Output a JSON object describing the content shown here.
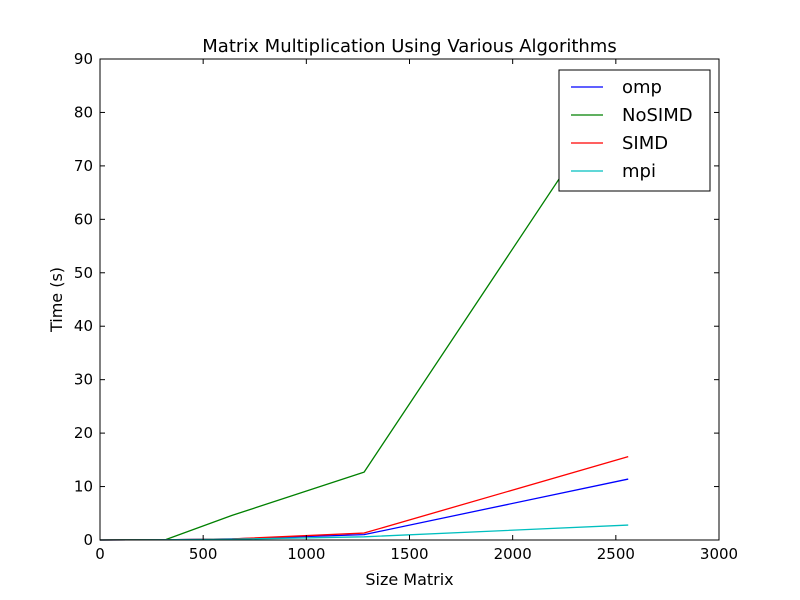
{
  "chart_data": {
    "type": "line",
    "title": "Matrix Multiplication Using Various Algorithms",
    "xlabel": "Size Matrix",
    "ylabel": "Time (s)",
    "xlim": [
      0,
      3000
    ],
    "ylim": [
      0,
      90
    ],
    "xticks": [
      0,
      500,
      1000,
      1500,
      2000,
      2500,
      3000
    ],
    "yticks": [
      0,
      10,
      20,
      30,
      40,
      50,
      60,
      70,
      80,
      90
    ],
    "grid": false,
    "legend_position": "top-right",
    "series": [
      {
        "name": "omp",
        "color": "#0000ff",
        "x": [
          0,
          320,
          640,
          1280,
          2560
        ],
        "y": [
          0,
          0.05,
          0.2,
          1.0,
          11.4
        ]
      },
      {
        "name": "NoSIMD",
        "color": "#008000",
        "x": [
          0,
          320,
          640,
          1280,
          2560
        ],
        "y": [
          0,
          0.1,
          4.6,
          12.7,
          87.0
        ]
      },
      {
        "name": "SIMD",
        "color": "#ff0000",
        "x": [
          0,
          320,
          640,
          1280,
          2560
        ],
        "y": [
          0,
          0.05,
          0.2,
          1.3,
          15.6
        ]
      },
      {
        "name": "mpi",
        "color": "#00bfbf",
        "x": [
          0,
          320,
          640,
          1280,
          2560
        ],
        "y": [
          0,
          0.05,
          0.15,
          0.6,
          2.8
        ]
      }
    ]
  }
}
